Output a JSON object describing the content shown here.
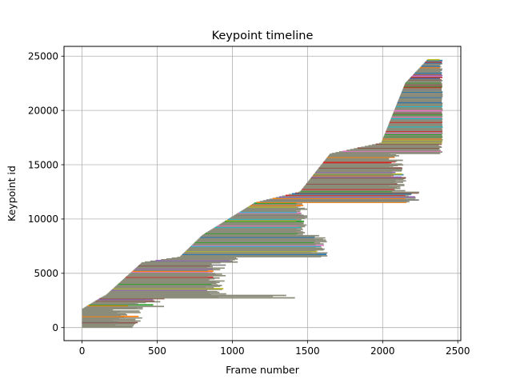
{
  "chart_data": {
    "type": "line",
    "title": "Keypoint timeline",
    "xlabel": "Frame number",
    "ylabel": "Keypoint id",
    "xlim": [
      -120,
      2520
    ],
    "ylim": [
      -1200,
      25900
    ],
    "xticks": [
      0,
      500,
      1000,
      1500,
      2000,
      2500
    ],
    "yticks": [
      0,
      5000,
      10000,
      15000,
      20000,
      25000
    ],
    "grid": true,
    "legend": "none",
    "series_colors": [
      "#1f77b4",
      "#ff7f0e",
      "#2ca02c",
      "#d62728",
      "#9467bd",
      "#8c564b",
      "#e377c2",
      "#7f7f7f",
      "#bcbd22",
      "#17becf"
    ],
    "dominant_color": "#8c8c7a",
    "keypoint_tracks": [
      {
        "id_from": 0,
        "id_to": 1700,
        "start_from": 0,
        "start_to": 0,
        "end_min": 180,
        "end_max": 420
      },
      {
        "id_from": 1700,
        "id_to": 2700,
        "start_from": 0,
        "start_to": 120,
        "end_min": 300,
        "end_max": 560
      },
      {
        "id_from": 2700,
        "id_to": 3000,
        "start_from": 120,
        "start_to": 160,
        "end_min": 900,
        "end_max": 1470
      },
      {
        "id_from": 3000,
        "id_to": 6000,
        "start_from": 160,
        "start_to": 400,
        "end_min": 820,
        "end_max": 960
      },
      {
        "id_from": 6000,
        "id_to": 6500,
        "start_from": 400,
        "start_to": 650,
        "end_min": 980,
        "end_max": 1060
      },
      {
        "id_from": 6500,
        "id_to": 8500,
        "start_from": 650,
        "start_to": 800,
        "end_min": 1520,
        "end_max": 1640
      },
      {
        "id_from": 8500,
        "id_to": 11500,
        "start_from": 800,
        "start_to": 1150,
        "end_min": 1420,
        "end_max": 1500
      },
      {
        "id_from": 11500,
        "id_to": 12500,
        "start_from": 1150,
        "start_to": 1450,
        "end_min": 2150,
        "end_max": 2250
      },
      {
        "id_from": 12500,
        "id_to": 16000,
        "start_from": 1450,
        "start_to": 1650,
        "end_min": 2040,
        "end_max": 2160
      },
      {
        "id_from": 16000,
        "id_to": 17000,
        "start_from": 1650,
        "start_to": 1990,
        "end_min": 2370,
        "end_max": 2400
      },
      {
        "id_from": 17000,
        "id_to": 22500,
        "start_from": 1990,
        "start_to": 2150,
        "end_min": 2390,
        "end_max": 2400
      },
      {
        "id_from": 22500,
        "id_to": 24700,
        "start_from": 2150,
        "start_to": 2300,
        "end_min": 2380,
        "end_max": 2400
      }
    ]
  }
}
